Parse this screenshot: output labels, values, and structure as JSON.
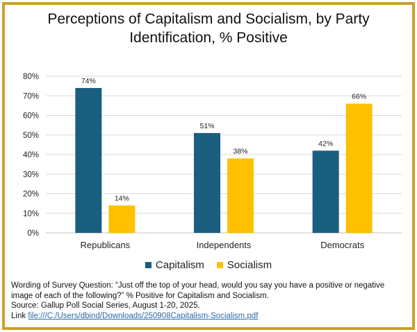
{
  "chart_data": {
    "type": "bar",
    "title": "Perceptions of Capitalism and Socialism, by Party Identification, % Positive",
    "title_lines": [
      "Perceptions of Capitalism and Socialism, by Party",
      "Identification, % Positive"
    ],
    "categories": [
      "Republicans",
      "Independents",
      "Democrats"
    ],
    "series": [
      {
        "name": "Capitalism",
        "values": [
          74,
          51,
          42
        ],
        "labels": [
          "74%",
          "51%",
          "42%"
        ],
        "color": "#1a5e80"
      },
      {
        "name": "Socialism",
        "values": [
          14,
          38,
          66
        ],
        "labels": [
          "14%",
          "38%",
          "66%"
        ],
        "color": "#ffc000"
      }
    ],
    "yticks": [
      "0%",
      "10%",
      "20%",
      "30%",
      "40%",
      "50%",
      "60%",
      "70%",
      "80%"
    ],
    "ylim": [
      0,
      80
    ],
    "grid": true,
    "legend_position": "bottom"
  },
  "notes": {
    "question": "Wording of Survey Question: “Just off the top of your head, would you say you have a positive or negative image of each of the following?”  % Positive for Capitalism and Socialism.",
    "source": "Source: Gallup Poll Social Series, August 1-20, 2025.",
    "link_label": "Link ",
    "link_url": "file:///C:/Users/dbind/Downloads/250908Capitalism-Socialism.pdf"
  },
  "colors": {
    "border": "#c9a227",
    "capitalism": "#1a5e80",
    "socialism": "#ffc000",
    "grid": "#d9d9d9"
  }
}
